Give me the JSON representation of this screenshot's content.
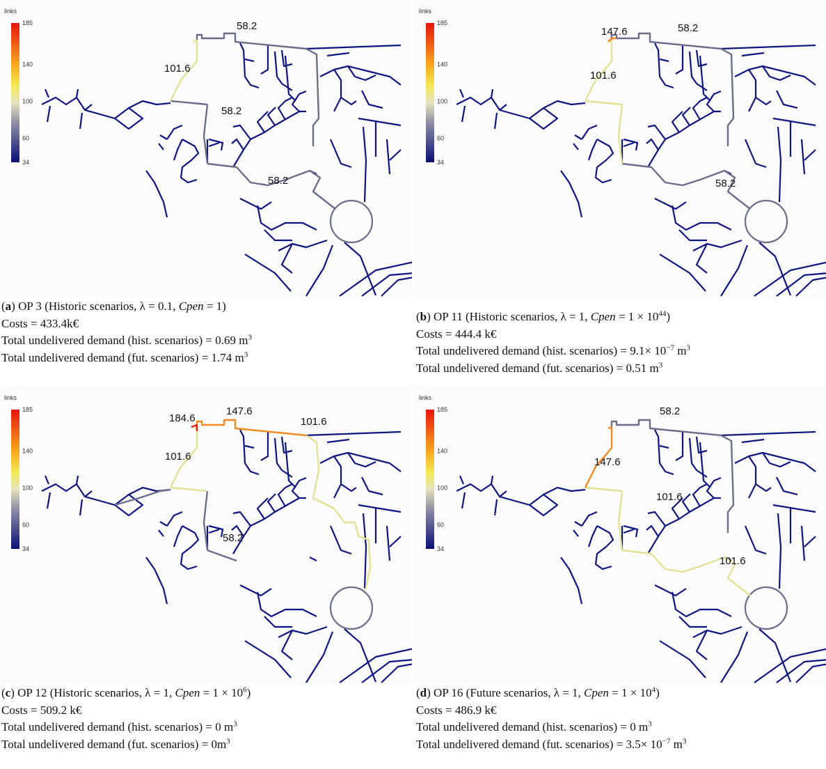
{
  "panels": [
    {
      "colorbar": {
        "title": "links",
        "lim": [
          34,
          185
        ],
        "ticks": [
          185,
          140,
          100,
          60,
          34
        ]
      },
      "pipe_labels": [
        101.6,
        58.2,
        58.2,
        58.2
      ],
      "caption": [
        [
          "(",
          "a",
          ") OP 3 (Historic scenarios,  λ = 0.1, ",
          "Cpen",
          " = 1)"
        ],
        [
          "Costs = 433.4k€"
        ],
        [
          "Total undelivered demand (hist. scenarios) = 0.69 m",
          "3"
        ],
        [
          "Total undelivered demand (fut. scenarios) = 1.74 m",
          "3"
        ]
      ]
    },
    {
      "colorbar": {
        "title": "links",
        "lim": [
          34,
          185
        ],
        "ticks": [
          185,
          140,
          100,
          60,
          34
        ]
      },
      "pipe_labels": [
        147.6,
        58.2,
        101.6,
        58.2
      ],
      "caption": [
        [
          "(",
          "b",
          ") OP 11 (Historic scenarios,  λ = 1, ",
          "Cpen",
          " = 1 × 10",
          "44",
          ")"
        ],
        [
          "Costs = 444.4 k€"
        ],
        [
          "Total undelivered demand (hist. scenarios) = 9.1× 10",
          "−7",
          " m",
          "3"
        ],
        [
          "Total undelivered demand (fut. scenarios) = 0.51 m",
          "3"
        ]
      ]
    },
    {
      "colorbar": {
        "title": "links",
        "lim": [
          34,
          185
        ],
        "ticks": [
          185,
          140,
          100,
          60,
          34
        ]
      },
      "pipe_labels": [
        184.6,
        147.6,
        101.6,
        101.6,
        58.2
      ],
      "caption": [
        [
          "(",
          "c",
          ") OP 12 (Historic scenarios,  λ = 1, ",
          "Cpen",
          " = 1 × 10",
          "6",
          ")"
        ],
        [
          "Costs = 509.2 k€"
        ],
        [
          "Total undelivered demand (hist. scenarios) = 0 m",
          "3"
        ],
        [
          "Total undelivered demand (fut. scenarios) = 0m",
          "3"
        ]
      ]
    },
    {
      "colorbar": {
        "title": "links",
        "lim": [
          34,
          185
        ],
        "ticks": [
          185,
          140,
          100,
          60,
          34
        ]
      },
      "pipe_labels": [
        58.2,
        147.6,
        101.6,
        101.6
      ],
      "caption": [
        [
          "(",
          "d",
          ") OP 16 (Future scenarios,  λ = 1, ",
          "Cpen",
          " = 1 × 10",
          "4",
          ")"
        ],
        [
          "Costs = 486.9 k€"
        ],
        [
          "Total undelivered demand (hist. scenarios) = 0 m",
          "3"
        ],
        [
          "Total undelivered demand (fut. scenarios) = 3.5× 10",
          "−7",
          " m",
          "3"
        ]
      ]
    }
  ]
}
